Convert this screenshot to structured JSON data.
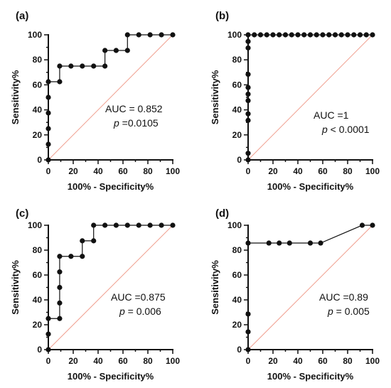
{
  "colors": {
    "axis": "#111111",
    "curve": "#111111",
    "point": "#111111",
    "diagonal": "#f0a090"
  },
  "chart_data": [
    {
      "type": "line",
      "panel": "(a)",
      "xlabel": "100% - Specificity%",
      "ylabel": "Sensitivity%",
      "xlim": [
        0,
        100
      ],
      "ylim": [
        0,
        100
      ],
      "xticks": [
        "0",
        "20",
        "40",
        "60",
        "80",
        "100"
      ],
      "yticks": [
        "0",
        "20",
        "40",
        "60",
        "80",
        "100"
      ],
      "grid": false,
      "reference_line": [
        [
          0,
          0
        ],
        [
          100,
          100
        ]
      ],
      "annotation": {
        "auc": "AUC = 0.852",
        "p_label": "p",
        "p_value": " =0.0105"
      },
      "points": [
        [
          0,
          0
        ],
        [
          0,
          12.5
        ],
        [
          0,
          25
        ],
        [
          0,
          37.5
        ],
        [
          0,
          50
        ],
        [
          0,
          62.5
        ],
        [
          9.1,
          62.5
        ],
        [
          9.1,
          75
        ],
        [
          18.2,
          75
        ],
        [
          27.3,
          75
        ],
        [
          36.4,
          75
        ],
        [
          45.5,
          75
        ],
        [
          45.5,
          87.5
        ],
        [
          54.5,
          87.5
        ],
        [
          63.6,
          87.5
        ],
        [
          63.6,
          100
        ],
        [
          72.7,
          100
        ],
        [
          81.8,
          100
        ],
        [
          90.9,
          100
        ],
        [
          100,
          100
        ]
      ]
    },
    {
      "type": "line",
      "panel": "(b)",
      "xlabel": "100% - Specificity%",
      "ylabel": "Sensitivity%",
      "xlim": [
        0,
        100
      ],
      "ylim": [
        0,
        100
      ],
      "xticks": [
        "0",
        "20",
        "40",
        "60",
        "80",
        "100"
      ],
      "yticks": [
        "0",
        "20",
        "40",
        "60",
        "80",
        "100"
      ],
      "grid": false,
      "reference_line": [
        [
          0,
          0
        ],
        [
          100,
          100
        ]
      ],
      "annotation": {
        "auc": "AUC =1",
        "p_label": "p",
        "p_value": " < 0.0001"
      },
      "points": [
        [
          0,
          0
        ],
        [
          0,
          5.3
        ],
        [
          0,
          31.6
        ],
        [
          0,
          36.8
        ],
        [
          0,
          47.4
        ],
        [
          0,
          52.6
        ],
        [
          0,
          57.9
        ],
        [
          0,
          68.4
        ],
        [
          0,
          89.5
        ],
        [
          0,
          94.7
        ],
        [
          0,
          100
        ],
        [
          5,
          100
        ],
        [
          10,
          100
        ],
        [
          15,
          100
        ],
        [
          20,
          100
        ],
        [
          25,
          100
        ],
        [
          30,
          100
        ],
        [
          35,
          100
        ],
        [
          40,
          100
        ],
        [
          45,
          100
        ],
        [
          50,
          100
        ],
        [
          55,
          100
        ],
        [
          60,
          100
        ],
        [
          65,
          100
        ],
        [
          70,
          100
        ],
        [
          75,
          100
        ],
        [
          80,
          100
        ],
        [
          85,
          100
        ],
        [
          90,
          100
        ],
        [
          95,
          100
        ],
        [
          100,
          100
        ]
      ]
    },
    {
      "type": "line",
      "panel": "(c)",
      "xlabel": "100% - Specificity%",
      "ylabel": "Sensitivity%",
      "xlim": [
        0,
        100
      ],
      "ylim": [
        0,
        100
      ],
      "xticks": [
        "0",
        "20",
        "40",
        "60",
        "80",
        "100"
      ],
      "yticks": [
        "0",
        "20",
        "40",
        "60",
        "80",
        "100"
      ],
      "grid": false,
      "reference_line": [
        [
          0,
          0
        ],
        [
          100,
          100
        ]
      ],
      "annotation": {
        "auc": "AUC =0.875",
        "p_label": "p",
        "p_value": " = 0.006"
      },
      "points": [
        [
          0,
          0
        ],
        [
          0,
          12.5
        ],
        [
          0,
          25
        ],
        [
          9.1,
          25
        ],
        [
          9.1,
          37.5
        ],
        [
          9.1,
          50
        ],
        [
          9.1,
          62.5
        ],
        [
          9.1,
          75
        ],
        [
          18.2,
          75
        ],
        [
          27.3,
          75
        ],
        [
          27.3,
          87.5
        ],
        [
          36.4,
          87.5
        ],
        [
          36.4,
          100
        ],
        [
          45.5,
          100
        ],
        [
          54.5,
          100
        ],
        [
          63.6,
          100
        ],
        [
          72.7,
          100
        ],
        [
          81.8,
          100
        ],
        [
          90.9,
          100
        ],
        [
          100,
          100
        ]
      ]
    },
    {
      "type": "line",
      "panel": "(d)",
      "xlabel": "100% - Specificity%",
      "ylabel": "Sensitivity%",
      "xlim": [
        0,
        100
      ],
      "ylim": [
        0,
        100
      ],
      "xticks": [
        "0",
        "20",
        "40",
        "60",
        "80",
        "100"
      ],
      "yticks": [
        "0",
        "20",
        "40",
        "60",
        "80",
        "100"
      ],
      "grid": false,
      "reference_line": [
        [
          0,
          0
        ],
        [
          100,
          100
        ]
      ],
      "annotation": {
        "auc": "AUC =0.89",
        "p_label": "p",
        "p_value": " = 0.005"
      },
      "points": [
        [
          0,
          0
        ],
        [
          0,
          14.3
        ],
        [
          0,
          28.6
        ],
        [
          0,
          85.7
        ],
        [
          16.7,
          85.7
        ],
        [
          25,
          85.7
        ],
        [
          33.3,
          85.7
        ],
        [
          50,
          85.7
        ],
        [
          58.3,
          85.7
        ],
        [
          91.7,
          100
        ],
        [
          100,
          100
        ]
      ]
    }
  ]
}
